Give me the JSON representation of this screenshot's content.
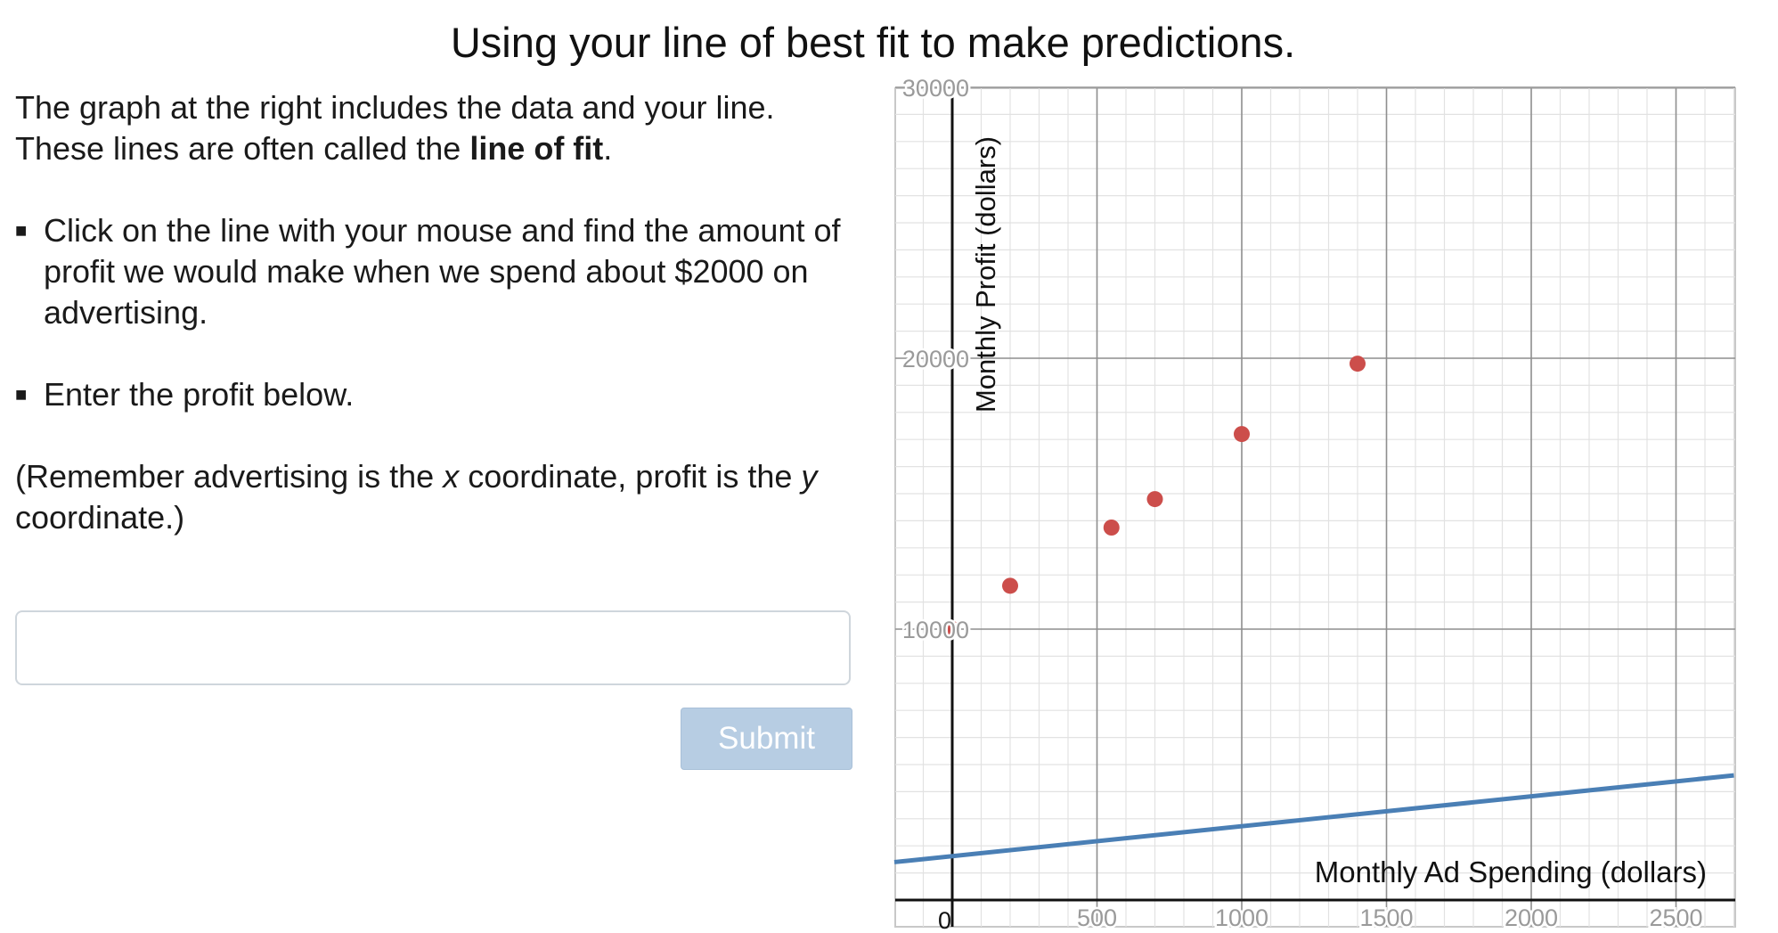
{
  "page": {
    "title": "Using your line of best fit to make predictions."
  },
  "instructions": {
    "intro_1": "The graph at the right includes the data and your line.",
    "intro_2_prefix": "These lines are often called the ",
    "intro_2_bold": "line of fit",
    "intro_2_suffix": ".",
    "bullet_1": "Click on the line with your mouse and find the amount of profit we would make when we spend about $2000 on advertising.",
    "bullet_2": "Enter the profit below.",
    "note_prefix": "(Remember advertising is the ",
    "note_x": "x",
    "note_mid": " coordinate, profit is the ",
    "note_y": "y",
    "note_suffix": " coordinate.)"
  },
  "answer_input": {
    "value": "",
    "placeholder": ""
  },
  "submit": {
    "label": "Submit"
  },
  "colors": {
    "points": "#cc4e4b",
    "fit_line": "#4a7fb5",
    "submit_bg": "#b7cde3"
  },
  "chart_data": {
    "type": "scatter",
    "xlabel": "Monthly Ad Spending (dollars)",
    "ylabel": "Monthly Profit (dollars)",
    "xlim": [
      -200,
      2700
    ],
    "ylim": [
      -1000,
      30000
    ],
    "x_ticks": [
      500,
      1000,
      1500,
      2000,
      2500
    ],
    "y_ticks": [
      10000,
      20000,
      30000
    ],
    "origin_label": "0",
    "grid": true,
    "points": [
      {
        "x": 0,
        "y": 10000
      },
      {
        "x": 200,
        "y": 11600
      },
      {
        "x": 550,
        "y": 13750
      },
      {
        "x": 700,
        "y": 14800
      },
      {
        "x": 1000,
        "y": 17200
      },
      {
        "x": 1400,
        "y": 19800
      }
    ],
    "fit_line": {
      "x1": -200,
      "y1": 1400,
      "x2": 2700,
      "y2": 4600
    }
  }
}
